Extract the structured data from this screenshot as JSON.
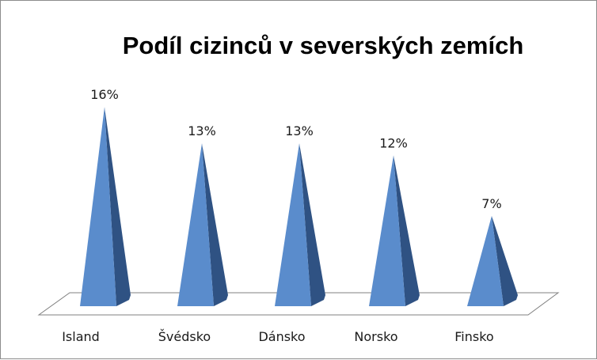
{
  "chart_data": {
    "type": "bar",
    "shape": "pyramid-3d",
    "title": "Podíl cizinců v severských zemích",
    "xlabel": "",
    "ylabel": "",
    "categories": [
      "Island",
      "Švédsko",
      "Dánsko",
      "Norsko",
      "Finsko"
    ],
    "values": [
      16,
      13,
      13,
      12,
      7
    ],
    "value_labels": [
      "16%",
      "13%",
      "13%",
      "12%",
      "7%"
    ],
    "unit": "%",
    "ylim": [
      0,
      16
    ],
    "grid": false,
    "legend": "none",
    "colors": {
      "front": "#5a8ccc",
      "side": "#2f5283",
      "floor_stroke": "#808080",
      "frame": "#8c8c8c"
    }
  }
}
